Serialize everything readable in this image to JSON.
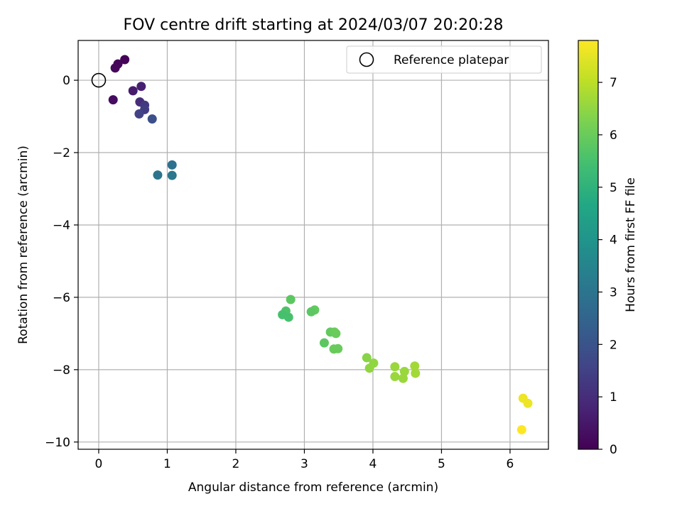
{
  "chart_data": {
    "type": "scatter",
    "title": "FOV centre drift starting at 2024/03/07 20:20:28",
    "xlabel": "Angular distance from reference (arcmin)",
    "ylabel": "Rotation from reference (arcmin)",
    "xlim": [
      -0.3,
      6.56
    ],
    "ylim": [
      -10.2,
      1.1
    ],
    "xticks": [
      0,
      1,
      2,
      3,
      4,
      5,
      6
    ],
    "yticks": [
      0,
      -2,
      -4,
      -6,
      -8,
      -10
    ],
    "grid": true,
    "colormap": "viridis",
    "colorbar": {
      "label": "Hours from first FF file",
      "range": [
        0,
        7.8
      ],
      "ticks": [
        0,
        1,
        2,
        3,
        4,
        5,
        6,
        7
      ]
    },
    "legend": {
      "placement": "top-right",
      "entries": [
        {
          "label": "Reference platepar",
          "marker": "open-circle"
        }
      ]
    },
    "reference_point": {
      "x": 0,
      "y": 0
    },
    "points": [
      {
        "x": 0.38,
        "y": 0.57,
        "c": 0.05
      },
      {
        "x": 0.28,
        "y": 0.45,
        "c": 0.1
      },
      {
        "x": 0.24,
        "y": 0.34,
        "c": 0.15
      },
      {
        "x": 0.21,
        "y": -0.54,
        "c": 0.25
      },
      {
        "x": 0.5,
        "y": -0.29,
        "c": 0.6
      },
      {
        "x": 0.62,
        "y": -0.17,
        "c": 0.7
      },
      {
        "x": 0.6,
        "y": -0.6,
        "c": 1.0
      },
      {
        "x": 0.67,
        "y": -0.69,
        "c": 1.3
      },
      {
        "x": 0.67,
        "y": -0.81,
        "c": 1.4
      },
      {
        "x": 0.59,
        "y": -0.93,
        "c": 1.5
      },
      {
        "x": 0.78,
        "y": -1.07,
        "c": 1.9
      },
      {
        "x": 1.07,
        "y": -2.34,
        "c": 2.9
      },
      {
        "x": 0.86,
        "y": -2.62,
        "c": 3.0
      },
      {
        "x": 1.07,
        "y": -2.63,
        "c": 3.1
      },
      {
        "x": 2.8,
        "y": -6.06,
        "c": 5.8
      },
      {
        "x": 2.73,
        "y": -6.38,
        "c": 5.6
      },
      {
        "x": 2.68,
        "y": -6.48,
        "c": 5.5
      },
      {
        "x": 2.77,
        "y": -6.55,
        "c": 5.5
      },
      {
        "x": 3.15,
        "y": -6.35,
        "c": 5.9
      },
      {
        "x": 3.1,
        "y": -6.4,
        "c": 5.8
      },
      {
        "x": 3.38,
        "y": -6.96,
        "c": 5.9
      },
      {
        "x": 3.44,
        "y": -6.96,
        "c": 6.0
      },
      {
        "x": 3.46,
        "y": -7.0,
        "c": 6.0
      },
      {
        "x": 3.29,
        "y": -7.26,
        "c": 5.8
      },
      {
        "x": 3.43,
        "y": -7.43,
        "c": 6.0
      },
      {
        "x": 3.49,
        "y": -7.42,
        "c": 6.0
      },
      {
        "x": 3.91,
        "y": -7.67,
        "c": 6.4
      },
      {
        "x": 4.01,
        "y": -7.82,
        "c": 6.5
      },
      {
        "x": 3.95,
        "y": -7.96,
        "c": 6.5
      },
      {
        "x": 4.32,
        "y": -7.92,
        "c": 6.6
      },
      {
        "x": 4.46,
        "y": -8.05,
        "c": 6.6
      },
      {
        "x": 4.61,
        "y": -7.9,
        "c": 6.7
      },
      {
        "x": 4.62,
        "y": -8.1,
        "c": 6.7
      },
      {
        "x": 4.32,
        "y": -8.19,
        "c": 6.6
      },
      {
        "x": 4.44,
        "y": -8.24,
        "c": 6.6
      },
      {
        "x": 6.19,
        "y": -8.79,
        "c": 7.6
      },
      {
        "x": 6.26,
        "y": -8.93,
        "c": 7.6
      },
      {
        "x": 6.17,
        "y": -9.66,
        "c": 7.8
      }
    ]
  }
}
